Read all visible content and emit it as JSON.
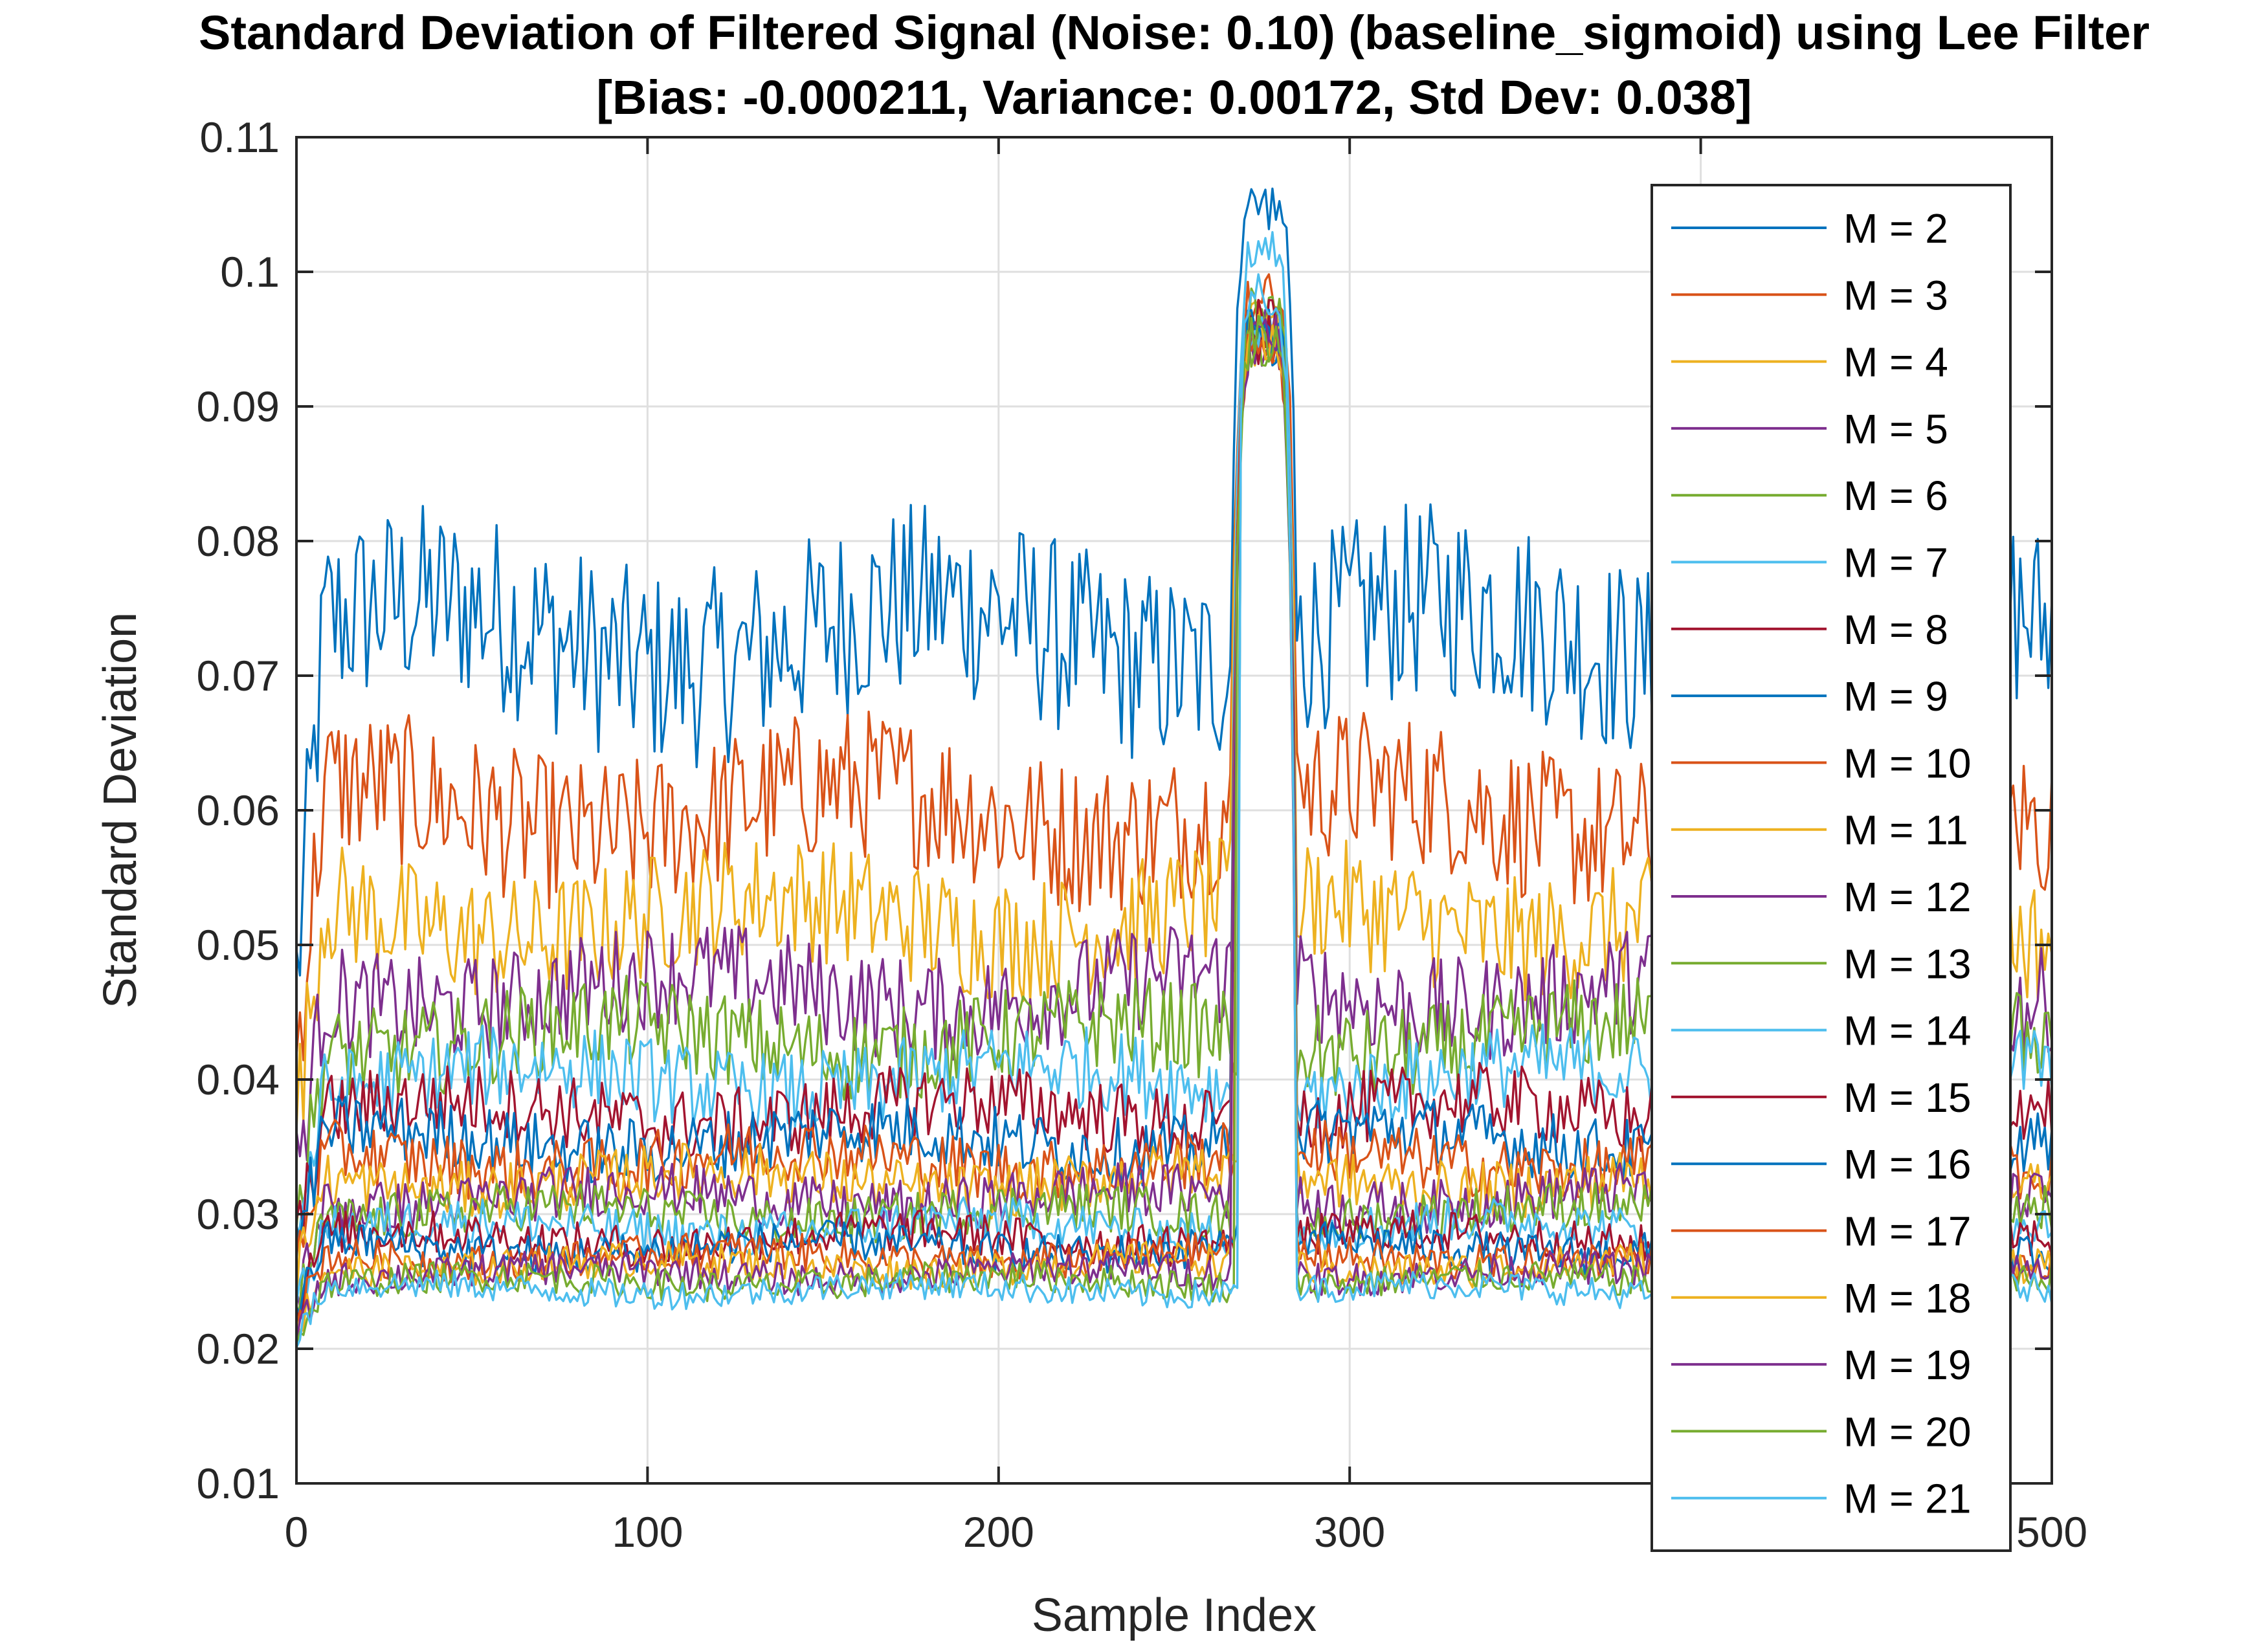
{
  "chart_data": {
    "type": "line",
    "title": "Standard Deviation of Filtered Signal (Noise: 0.10) (baseline_sigmoid) using Lee Filter",
    "subtitle": "[Bias: -0.000211, Variance: 0.00172, Std Dev: 0.038]",
    "xlabel": "Sample Index",
    "ylabel": "Standard Deviation",
    "xlim": [
      0,
      500
    ],
    "ylim": [
      0.01,
      0.11
    ],
    "xticks": [
      "0",
      "100",
      "200",
      "300",
      "400",
      "500"
    ],
    "yticks": [
      "0.01",
      "0.02",
      "0.03",
      "0.04",
      "0.05",
      "0.06",
      "0.07",
      "0.08",
      "0.09",
      "0.1",
      "0.11"
    ],
    "grid": true,
    "legend_position": "right",
    "peak": {
      "x_start": 268,
      "x_end": 283,
      "y_peak": 0.101
    },
    "series": [
      {
        "name": "M = 2",
        "color": "#0072BD",
        "baseline": 0.073,
        "peak": 0.107
      },
      {
        "name": "M = 3",
        "color": "#D95319",
        "baseline": 0.06,
        "peak": 0.1
      },
      {
        "name": "M = 4",
        "color": "#EDB120",
        "baseline": 0.052,
        "peak": 0.099
      },
      {
        "name": "M = 5",
        "color": "#7E2F8E",
        "baseline": 0.0465,
        "peak": 0.098
      },
      {
        "name": "M = 6",
        "color": "#77AC30",
        "baseline": 0.043,
        "peak": 0.099
      },
      {
        "name": "M = 7",
        "color": "#4DBEEE",
        "baseline": 0.04,
        "peak": 0.103
      },
      {
        "name": "M = 8",
        "color": "#A2142F",
        "baseline": 0.0375,
        "peak": 0.098
      },
      {
        "name": "M = 9",
        "color": "#0072BD",
        "baseline": 0.0355,
        "peak": 0.098
      },
      {
        "name": "M = 10",
        "color": "#D95319",
        "baseline": 0.034,
        "peak": 0.097
      },
      {
        "name": "M = 11",
        "color": "#EDB120",
        "baseline": 0.0325,
        "peak": 0.097
      },
      {
        "name": "M = 12",
        "color": "#7E2F8E",
        "baseline": 0.0312,
        "peak": 0.097
      },
      {
        "name": "M = 13",
        "color": "#77AC30",
        "baseline": 0.03,
        "peak": 0.097
      },
      {
        "name": "M = 14",
        "color": "#4DBEEE",
        "baseline": 0.029,
        "peak": 0.097
      },
      {
        "name": "M = 15",
        "color": "#A2142F",
        "baseline": 0.0282,
        "peak": 0.097
      },
      {
        "name": "M = 16",
        "color": "#0072BD",
        "baseline": 0.0275,
        "peak": 0.097
      },
      {
        "name": "M = 17",
        "color": "#D95319",
        "baseline": 0.0268,
        "peak": 0.097
      },
      {
        "name": "M = 18",
        "color": "#EDB120",
        "baseline": 0.0262,
        "peak": 0.097
      },
      {
        "name": "M = 19",
        "color": "#7E2F8E",
        "baseline": 0.0256,
        "peak": 0.097
      },
      {
        "name": "M = 20",
        "color": "#77AC30",
        "baseline": 0.025,
        "peak": 0.097
      },
      {
        "name": "M = 21",
        "color": "#4DBEEE",
        "baseline": 0.0244,
        "peak": 0.1
      }
    ]
  }
}
